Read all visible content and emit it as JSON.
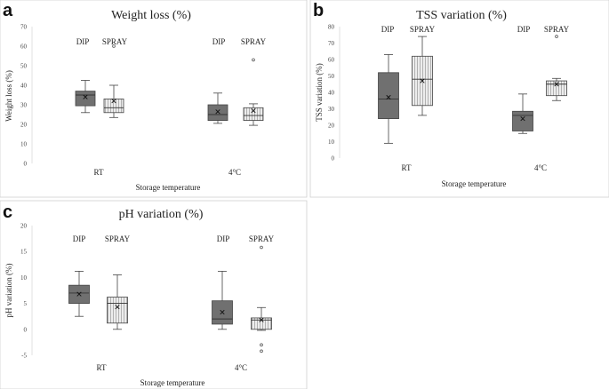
{
  "chart_data": [
    {
      "panel": "a",
      "type": "box",
      "title": "Weight loss (%)",
      "ylabel": "Weight loss (%)",
      "xlabel": "Storage temperature",
      "ylim": [
        0,
        70
      ],
      "yticks": [
        0,
        10,
        20,
        30,
        40,
        50,
        60,
        70
      ],
      "categories": [
        "RT",
        "4°C"
      ],
      "series": [
        {
          "name": "DIP",
          "style": "solid",
          "color": "#707070",
          "boxes": [
            {
              "min": 26,
              "q1": 29.5,
              "median": 35,
              "q3": 37,
              "max": 42.5,
              "mean": 34,
              "outliers": []
            },
            {
              "min": 20.5,
              "q1": 22,
              "median": 25,
              "q3": 30,
              "max": 36,
              "mean": 26.5,
              "outliers": []
            }
          ]
        },
        {
          "name": "SPRAY",
          "style": "hatched",
          "color": "#e8e8e8",
          "boxes": [
            {
              "min": 23.5,
              "q1": 26,
              "median": 28.5,
              "q3": 33,
              "max": 40,
              "mean": 32,
              "outliers": [
                60
              ]
            },
            {
              "min": 19.5,
              "q1": 22,
              "median": 24.5,
              "q3": 28.5,
              "max": 30.5,
              "mean": 27,
              "outliers": [
                53
              ]
            }
          ]
        }
      ]
    },
    {
      "panel": "b",
      "type": "box",
      "title": "TSS variation (%)",
      "ylabel": "TSS variation (%)",
      "xlabel": "Storage temperature",
      "ylim": [
        0,
        80
      ],
      "yticks": [
        0,
        10,
        20,
        30,
        40,
        50,
        60,
        70,
        80
      ],
      "categories": [
        "RT",
        "4°C"
      ],
      "series": [
        {
          "name": "DIP",
          "style": "solid",
          "color": "#707070",
          "boxes": [
            {
              "min": 9,
              "q1": 24,
              "median": 36,
              "q3": 52,
              "max": 63,
              "mean": 37,
              "outliers": []
            },
            {
              "min": 15,
              "q1": 16.5,
              "median": 26,
              "q3": 28.5,
              "max": 39,
              "mean": 24,
              "outliers": []
            }
          ]
        },
        {
          "name": "SPRAY",
          "style": "hatched",
          "color": "#e8e8e8",
          "boxes": [
            {
              "min": 26,
              "q1": 32,
              "median": 48,
              "q3": 62,
              "max": 74,
              "mean": 47,
              "outliers": []
            },
            {
              "min": 35,
              "q1": 38,
              "median": 45,
              "q3": 47,
              "max": 48.5,
              "mean": 45,
              "outliers": [
                74
              ]
            }
          ]
        }
      ]
    },
    {
      "panel": "c",
      "type": "box",
      "title": "pH variation (%)",
      "ylabel": "pH variation (%)",
      "xlabel": "Storage temperature",
      "ylim": [
        -5,
        20
      ],
      "yticks": [
        -5,
        0,
        5,
        10,
        15,
        20
      ],
      "categories": [
        "RT",
        "4°C"
      ],
      "series": [
        {
          "name": "DIP",
          "style": "solid",
          "color": "#707070",
          "boxes": [
            {
              "min": 2.5,
              "q1": 5,
              "median": 7,
              "q3": 8.5,
              "max": 11.2,
              "mean": 6.8,
              "outliers": []
            },
            {
              "min": 0,
              "q1": 1,
              "median": 2,
              "q3": 5.5,
              "max": 11.2,
              "mean": 3.3,
              "outliers": []
            }
          ]
        },
        {
          "name": "SPRAY",
          "style": "hatched",
          "color": "#e8e8e8",
          "boxes": [
            {
              "min": 0,
              "q1": 1.2,
              "median": 5,
              "q3": 6.2,
              "max": 10.5,
              "mean": 4.3,
              "outliers": []
            },
            {
              "min": -0.2,
              "q1": 0,
              "median": 1.8,
              "q3": 2.2,
              "max": 4.2,
              "mean": 1.8,
              "outliers": [
                15.8,
                -3,
                -4.2
              ]
            }
          ]
        }
      ]
    }
  ]
}
